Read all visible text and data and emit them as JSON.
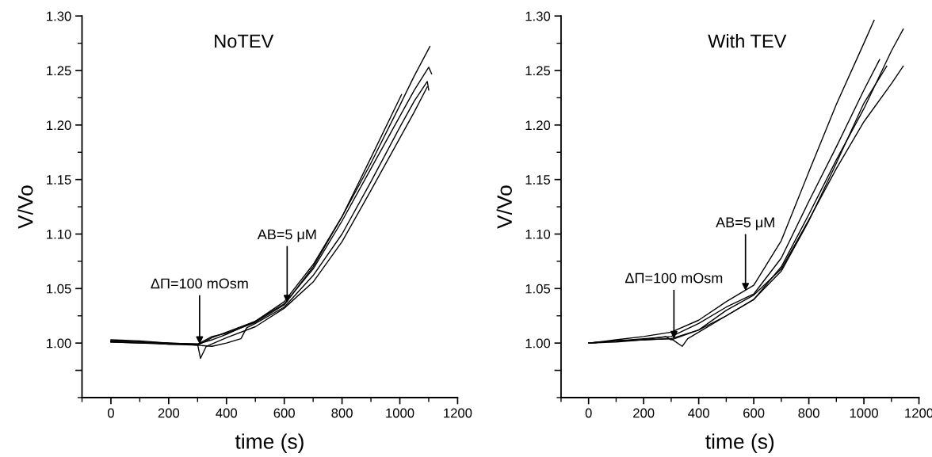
{
  "chart_data": [
    {
      "type": "line",
      "title": "NoTEV",
      "xlabel": "time (s)",
      "ylabel": "V/Vo",
      "xlim": [
        -100,
        1200
      ],
      "xticks": [
        0,
        200,
        400,
        600,
        800,
        1000,
        1200
      ],
      "ylim": [
        0.95,
        1.3
      ],
      "yticks": [
        {
          "value": 0.975,
          "label": null
        },
        {
          "value": 1.0,
          "label": "1.00"
        },
        {
          "value": 1.05,
          "label": "1.05"
        },
        {
          "value": 1.1,
          "label": "1.10"
        },
        {
          "value": 1.15,
          "label": "1.15"
        },
        {
          "value": 1.2,
          "label": "1.20"
        },
        {
          "value": 1.25,
          "label": "1.25"
        },
        {
          "value": 1.3,
          "label": "1.30"
        }
      ],
      "grid": false,
      "legend": false,
      "line_style": "solid",
      "series": [
        {
          "color": "#000000",
          "x": [
            0,
            100,
            200,
            300,
            350,
            400,
            500,
            600,
            700,
            800,
            900,
            1000,
            1050,
            1104
          ],
          "values": [
            1.002,
            1.001,
            1.0,
            0.999,
            1.003,
            1.008,
            1.02,
            1.038,
            1.072,
            1.116,
            1.165,
            1.218,
            1.245,
            1.272
          ]
        },
        {
          "color": "#000000",
          "x": [
            0,
            100,
            200,
            300,
            350,
            400,
            500,
            600,
            700,
            800,
            900,
            1000,
            1050,
            1100,
            1110
          ],
          "values": [
            1.001,
            1.0,
            1.0,
            0.998,
            1.005,
            1.01,
            1.02,
            1.036,
            1.068,
            1.112,
            1.16,
            1.208,
            1.232,
            1.253,
            1.247
          ]
        },
        {
          "color": "#000000",
          "x": [
            0,
            100,
            200,
            300,
            350,
            400,
            500,
            600,
            700,
            800,
            900,
            1006
          ],
          "values": [
            1.003,
            1.002,
            1.0,
            0.999,
            1.006,
            1.009,
            1.019,
            1.035,
            1.07,
            1.116,
            1.17,
            1.228
          ]
        },
        {
          "color": "#000000",
          "x": [
            0,
            100,
            200,
            300,
            350,
            400,
            450,
            470,
            500,
            600,
            700,
            800,
            900,
            1000,
            1050,
            1095,
            1100
          ],
          "values": [
            1.002,
            1.001,
            0.999,
            0.998,
            0.997,
            1.0,
            1.004,
            1.014,
            1.018,
            1.033,
            1.062,
            1.1,
            1.148,
            1.198,
            1.222,
            1.24,
            1.232
          ]
        },
        {
          "color": "#000000",
          "x": [
            0,
            100,
            200,
            300,
            310,
            330,
            400,
            500,
            600,
            700,
            800,
            900,
            1000,
            1050,
            1095
          ],
          "values": [
            1.001,
            1.0,
            0.999,
            0.999,
            0.986,
            0.997,
            1.005,
            1.015,
            1.032,
            1.056,
            1.093,
            1.14,
            1.188,
            1.212,
            1.235
          ]
        }
      ],
      "annotations": [
        {
          "text": "ΔΠ=100 mOsm",
          "x": 307,
          "y": 0.999
        },
        {
          "text": "AB=5 μM",
          "x": 610,
          "y": 1.037
        }
      ]
    },
    {
      "type": "line",
      "title": "With TEV",
      "xlabel": "time (s)",
      "ylabel": "V/Vo",
      "xlim": [
        -100,
        1200
      ],
      "xticks": [
        0,
        200,
        400,
        600,
        800,
        1000,
        1200
      ],
      "ylim": [
        0.95,
        1.3
      ],
      "yticks": [
        {
          "value": 0.975,
          "label": null
        },
        {
          "value": 1.0,
          "label": "1.00"
        },
        {
          "value": 1.05,
          "label": "1.05"
        },
        {
          "value": 1.1,
          "label": "1.10"
        },
        {
          "value": 1.15,
          "label": "1.15"
        },
        {
          "value": 1.2,
          "label": "1.20"
        },
        {
          "value": 1.25,
          "label": "1.25"
        },
        {
          "value": 1.3,
          "label": "1.30"
        }
      ],
      "grid": false,
      "legend": false,
      "line_style": "solid",
      "series": [
        {
          "color": "#000000",
          "x": [
            0,
            100,
            200,
            300,
            400,
            500,
            600,
            700,
            800,
            900,
            1000,
            1037
          ],
          "values": [
            1.0,
            1.003,
            1.006,
            1.01,
            1.021,
            1.038,
            1.053,
            1.094,
            1.157,
            1.219,
            1.275,
            1.296
          ]
        },
        {
          "color": "#000000",
          "x": [
            0,
            100,
            200,
            300,
            400,
            500,
            600,
            700,
            800,
            900,
            1000,
            1100,
            1143
          ],
          "values": [
            1.0,
            1.002,
            1.003,
            1.004,
            1.012,
            1.025,
            1.04,
            1.07,
            1.118,
            1.168,
            1.215,
            1.268,
            1.288
          ]
        },
        {
          "color": "#000000",
          "x": [
            0,
            100,
            200,
            300,
            400,
            500,
            600,
            700,
            800,
            900,
            1000,
            1057
          ],
          "values": [
            1.0,
            1.002,
            1.004,
            1.006,
            1.018,
            1.033,
            1.045,
            1.078,
            1.13,
            1.18,
            1.232,
            1.26
          ]
        },
        {
          "color": "#000000",
          "x": [
            0,
            100,
            200,
            300,
            340,
            360,
            400,
            500,
            600,
            700,
            800,
            900,
            1000,
            1083
          ],
          "values": [
            1.0,
            1.001,
            1.003,
            1.004,
            0.997,
            1.004,
            1.01,
            1.025,
            1.04,
            1.066,
            1.112,
            1.165,
            1.22,
            1.254
          ]
        },
        {
          "color": "#000000",
          "x": [
            0,
            100,
            200,
            280,
            300,
            400,
            500,
            600,
            700,
            800,
            900,
            1000,
            1100,
            1143
          ],
          "values": [
            1.0,
            1.002,
            1.003,
            1.006,
            1.003,
            1.012,
            1.03,
            1.044,
            1.068,
            1.113,
            1.16,
            1.203,
            1.238,
            1.254
          ]
        }
      ],
      "annotations": [
        {
          "text": "ΔΠ=100 mOsm",
          "x": 310,
          "y": 1.004
        },
        {
          "text": "AB=5 μM",
          "x": 570,
          "y": 1.048
        }
      ]
    }
  ]
}
